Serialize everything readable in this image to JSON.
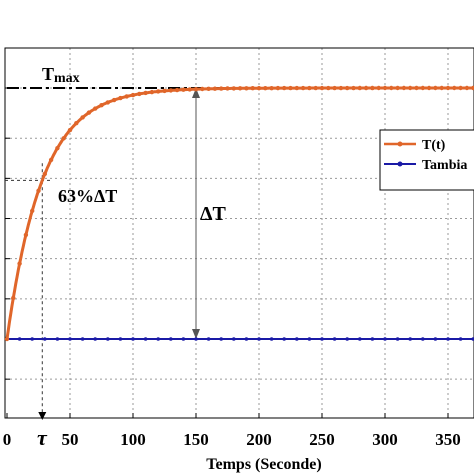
{
  "chart_data": {
    "type": "line",
    "xlabel": "Temps (Seconde)",
    "ylabel": "",
    "title": "",
    "xlim": [
      0,
      370
    ],
    "ylim": [
      0,
      1.0
    ],
    "xticks": [
      0,
      50,
      100,
      150,
      200,
      250,
      300,
      350
    ],
    "xtick_labels": [
      "0",
      "50",
      "100",
      "150",
      "200",
      "250",
      "300",
      "350"
    ],
    "grid": true,
    "legend_position": "right",
    "series": [
      {
        "name": "T(t)",
        "color": "#e0662a",
        "model": "first-order",
        "start_value": 0.0,
        "final_value": 1.0,
        "time_constant": 28,
        "marker_step": 5
      },
      {
        "name": "Tambia",
        "color": "#1a1aa6",
        "constant_value": 0.0,
        "marker_step": 10
      }
    ],
    "annotations": {
      "tmax_label": "T",
      "tmax_subscript": "max",
      "pct_label": "63%ΔT",
      "delta_label": "ΔT",
      "tau_label": "τ"
    }
  }
}
